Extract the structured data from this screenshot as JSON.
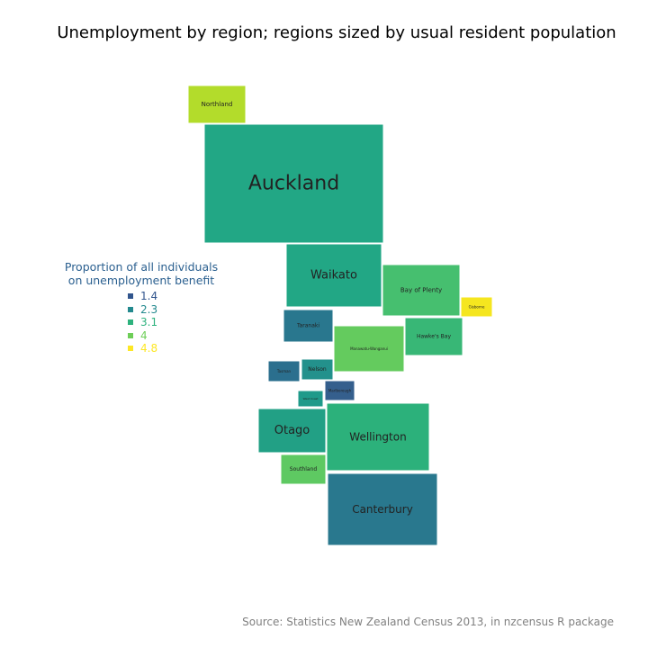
{
  "chart_data": {
    "type": "cartogram",
    "title": "Unemployment by region; regions sized by usual resident population",
    "caption": "Source: Statistics New Zealand Census 2013, in nzcensus R package",
    "legend": {
      "title_lines": [
        "Proportion of all individuals",
        "on unemployment benefit"
      ],
      "placement": "left",
      "items": [
        {
          "label": "1.4",
          "value": 1.4,
          "color": "#31558d"
        },
        {
          "label": "2.3",
          "value": 2.3,
          "color": "#23898e"
        },
        {
          "label": "3.1",
          "value": 3.1,
          "color": "#2db27d"
        },
        {
          "label": "4",
          "value": 4.0,
          "color": "#6ece58"
        },
        {
          "label": "4.8",
          "value": 4.8,
          "color": "#fde725"
        }
      ]
    },
    "regions": [
      {
        "name": "Northland",
        "color": "#b3dc2b",
        "label_size": 7
      },
      {
        "name": "Auckland",
        "color": "#22a785",
        "label_size": 22
      },
      {
        "name": "Waikato",
        "color": "#22a785",
        "label_size": 13
      },
      {
        "name": "Bay of Plenty",
        "color": "#46bf6f",
        "label_size": 7
      },
      {
        "name": "Gisborne",
        "color": "#f5e61f",
        "label_size": 4
      },
      {
        "name": "Taranaki",
        "color": "#29778e",
        "label_size": 6
      },
      {
        "name": "Hawke's Bay",
        "color": "#38b776",
        "label_size": 6
      },
      {
        "name": "Manawatu-Wanganui",
        "color": "#64cb5e",
        "label_size": 4
      },
      {
        "name": "Tasman",
        "color": "#2b6f8e",
        "label_size": 4
      },
      {
        "name": "Nelson",
        "color": "#23918c",
        "label_size": 6
      },
      {
        "name": "West Coast",
        "color": "#1f9a8a",
        "label_size": 3
      },
      {
        "name": "Marlborough",
        "color": "#355f8d",
        "label_size": 4
      },
      {
        "name": "Otago",
        "color": "#22a085",
        "label_size": 13
      },
      {
        "name": "Wellington",
        "color": "#2cb17b",
        "label_size": 12
      },
      {
        "name": "Southland",
        "color": "#5ec962",
        "label_size": 6
      },
      {
        "name": "Canterbury",
        "color": "#29788e",
        "label_size": 12
      }
    ]
  }
}
